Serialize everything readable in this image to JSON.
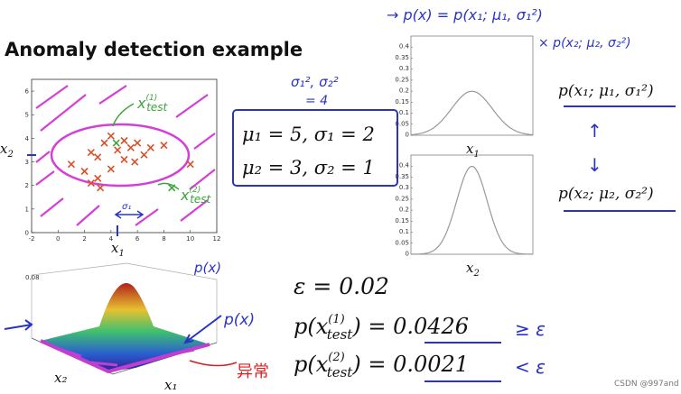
{
  "header": {
    "title": "Anomaly detection example"
  },
  "scatter": {
    "x_label": "x",
    "x_label_sub": "1",
    "y_label": "x",
    "y_label_sub": "2",
    "xlim": [
      -2,
      12
    ],
    "ylim": [
      0,
      6.5
    ],
    "xticks": [
      -2,
      0,
      2,
      4,
      6,
      8,
      10,
      12
    ],
    "yticks": [
      0,
      1,
      2,
      3,
      4,
      5,
      6
    ],
    "points": {
      "x": [
        1,
        2,
        2.5,
        3,
        3.5,
        4,
        4.5,
        5,
        5,
        5.5,
        6,
        6.5,
        7,
        8,
        10,
        3,
        2.5,
        4,
        3.2,
        5.8
      ],
      "y": [
        2.9,
        2.6,
        2.1,
        3.2,
        3.8,
        2.7,
        3.5,
        3.9,
        3.1,
        3.6,
        3.8,
        3.3,
        3.6,
        3.7,
        2.9,
        2.3,
        3.4,
        4.1,
        1.9,
        3.0
      ]
    },
    "test_points": {
      "x": [
        4.4,
        8.6
      ],
      "y": [
        3.8,
        1.9
      ]
    },
    "test_notes": [
      {
        "text": "x",
        "sup": "(1)",
        "sub": "test"
      },
      {
        "text": "x",
        "sup": "(2)",
        "sub": "test"
      }
    ],
    "spread_note": "σ₁"
  },
  "params": [
    {
      "mu_label": "μ₁ = ",
      "mu": 5,
      "sigma_label": ", σ₁ = ",
      "sigma": 2
    },
    {
      "mu_label": "μ₂ = ",
      "mu": 3,
      "sigma_label": ", σ₂ = ",
      "sigma": 1
    }
  ],
  "variance_note": {
    "line1": "σ₁², σ₂²",
    "line2": "= 4"
  },
  "pdf_plots": [
    {
      "x_label": "x",
      "x_label_sub": "1",
      "xlim": [
        -1,
        11
      ],
      "ylim": [
        0,
        0.45
      ],
      "yticks": [
        0,
        0.05,
        0.1,
        0.15,
        0.2,
        0.25,
        0.3,
        0.35,
        0.4
      ]
    },
    {
      "x_label": "x",
      "x_label_sub": "2",
      "xlim": [
        -1,
        7
      ],
      "ylim": [
        0,
        0.45
      ],
      "yticks": [
        0,
        0.05,
        0.1,
        0.15,
        0.2,
        0.25,
        0.3,
        0.35,
        0.4
      ]
    }
  ],
  "handwritten": {
    "product_line1": "→ p(x) = p(x₁; μ₁, σ₁²)",
    "product_line2": "× p(x₂; μ₂, σ₂²)",
    "px_top": "p(x)",
    "px_side": "p(x)",
    "up_arrow": "↑",
    "down_arrow": "↓",
    "red_note": "异常",
    "ge": "≥ ε",
    "lt": "< ε"
  },
  "factors": [
    "p(x₁; μ₁, σ₁²)",
    "p(x₂; μ₂, σ₂²)"
  ],
  "surface": {
    "x1_label": "x₁",
    "x2_label": "x₂",
    "z_tick": "0.08"
  },
  "results": {
    "epsilon": "ε = 0.02",
    "tests": [
      {
        "lhs": "p(x",
        "sup": "(1)",
        "sub": "test",
        "mid": ") = ",
        "value": "0.0426"
      },
      {
        "lhs": "p(x",
        "sup": "(2)",
        "sub": "test",
        "mid": ") = ",
        "value": "0.0021"
      }
    ]
  },
  "watermark": "CSDN @997and"
}
